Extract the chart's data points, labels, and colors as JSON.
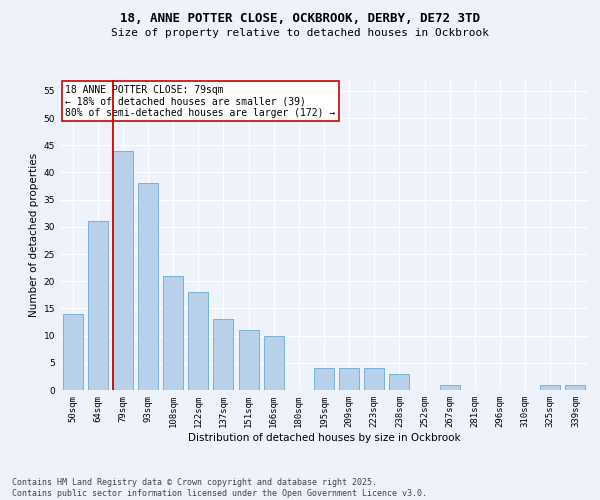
{
  "title1": "18, ANNE POTTER CLOSE, OCKBROOK, DERBY, DE72 3TD",
  "title2": "Size of property relative to detached houses in Ockbrook",
  "xlabel": "Distribution of detached houses by size in Ockbrook",
  "ylabel": "Number of detached properties",
  "categories": [
    "50sqm",
    "64sqm",
    "79sqm",
    "93sqm",
    "108sqm",
    "122sqm",
    "137sqm",
    "151sqm",
    "166sqm",
    "180sqm",
    "195sqm",
    "209sqm",
    "223sqm",
    "238sqm",
    "252sqm",
    "267sqm",
    "281sqm",
    "296sqm",
    "310sqm",
    "325sqm",
    "339sqm"
  ],
  "values": [
    14,
    31,
    44,
    38,
    21,
    18,
    13,
    11,
    10,
    0,
    4,
    4,
    4,
    3,
    0,
    1,
    0,
    0,
    0,
    1,
    1
  ],
  "bar_color": "#b8d0ea",
  "bar_edge_color": "#6aaad4",
  "highlight_index": 2,
  "highlight_line_color": "#cc0000",
  "annotation_text": "18 ANNE POTTER CLOSE: 79sqm\n← 18% of detached houses are smaller (39)\n80% of semi-detached houses are larger (172) →",
  "annotation_box_color": "#ffffff",
  "annotation_box_edge_color": "#cc0000",
  "footer": "Contains HM Land Registry data © Crown copyright and database right 2025.\nContains public sector information licensed under the Open Government Licence v3.0.",
  "ylim": [
    0,
    57
  ],
  "yticks": [
    0,
    5,
    10,
    15,
    20,
    25,
    30,
    35,
    40,
    45,
    50,
    55
  ],
  "background_color": "#eef2fa",
  "grid_color": "#ffffff",
  "title_fontsize": 9,
  "subtitle_fontsize": 8,
  "axis_label_fontsize": 7.5,
  "tick_fontsize": 6.5,
  "annotation_fontsize": 7,
  "footer_fontsize": 6
}
